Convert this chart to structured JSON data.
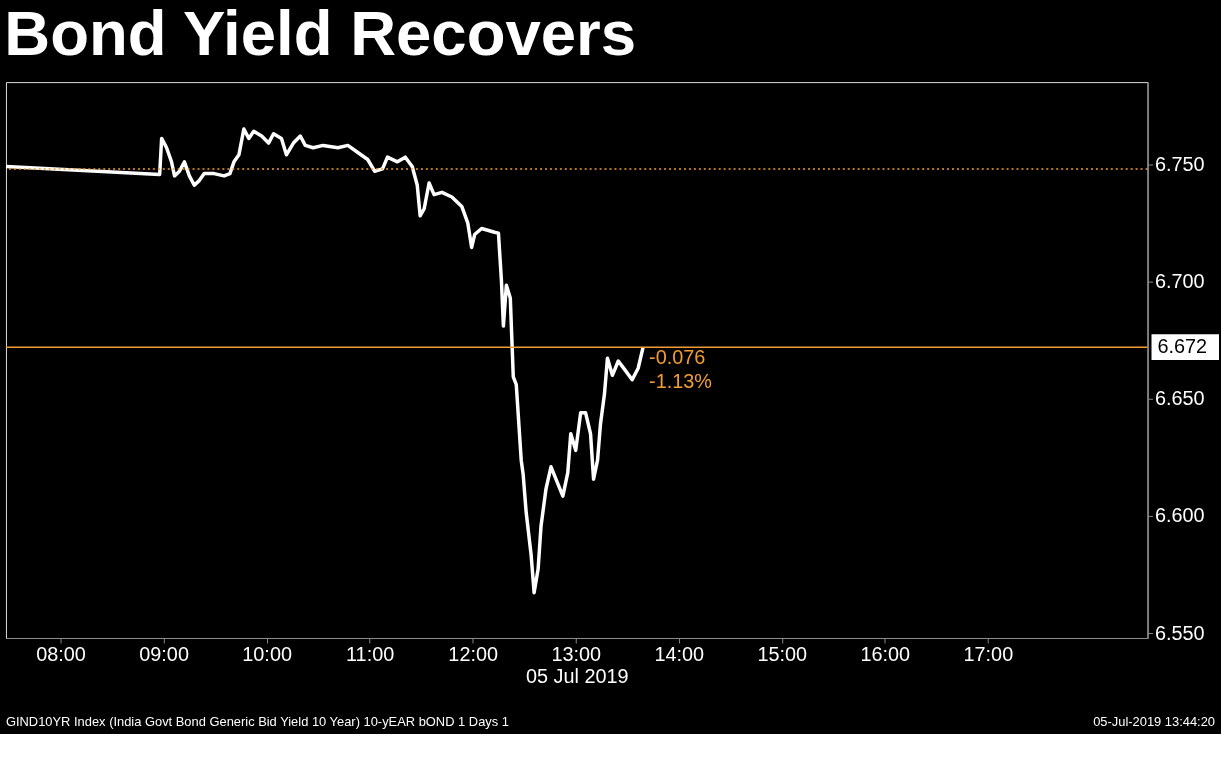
{
  "chart_data": {
    "type": "line",
    "title": "Bond Yield Recovers",
    "xlabel": "05 Jul 2019",
    "grid": false,
    "marker": "none",
    "line_style": "solid",
    "xlim": [
      7.47,
      18.55
    ],
    "ylim": [
      6.548,
      6.785
    ],
    "xticks": [
      {
        "value": 8,
        "label": "08:00"
      },
      {
        "value": 9,
        "label": "09:00"
      },
      {
        "value": 10,
        "label": "10:00"
      },
      {
        "value": 11,
        "label": "11:00"
      },
      {
        "value": 12,
        "label": "12:00"
      },
      {
        "value": 13,
        "label": "13:00"
      },
      {
        "value": 14,
        "label": "14:00"
      },
      {
        "value": 15,
        "label": "15:00"
      },
      {
        "value": 16,
        "label": "16:00"
      },
      {
        "value": 17,
        "label": "17:00"
      }
    ],
    "yticks": [
      {
        "value": 6.55,
        "label": "6.550"
      },
      {
        "value": 6.6,
        "label": "6.600"
      },
      {
        "value": 6.65,
        "label": "6.650"
      },
      {
        "value": 6.7,
        "label": "6.700"
      },
      {
        "value": 6.75,
        "label": "6.750"
      }
    ],
    "series": [
      {
        "color": "#ffffff",
        "x": [
          7.471,
          8.962,
          8.981,
          9.029,
          9.077,
          9.106,
          9.154,
          9.202,
          9.25,
          9.298,
          9.346,
          9.394,
          9.49,
          9.587,
          9.644,
          9.683,
          9.731,
          9.779,
          9.827,
          9.875,
          9.952,
          10.019,
          10.067,
          10.144,
          10.192,
          10.26,
          10.327,
          10.375,
          10.452,
          10.548,
          10.692,
          10.788,
          10.885,
          10.981,
          11.048,
          11.125,
          11.173,
          11.269,
          11.346,
          11.413,
          11.462,
          11.49,
          11.529,
          11.577,
          11.625,
          11.702,
          11.798,
          11.894,
          11.952,
          11.99,
          12.019,
          12.087,
          12.212,
          12.25,
          12.279,
          12.298,
          12.327,
          12.365,
          12.394,
          12.423,
          12.471,
          12.49,
          12.519,
          12.567,
          12.596,
          12.635,
          12.663,
          12.712,
          12.76,
          12.827,
          12.875,
          12.923,
          12.952,
          13.0,
          13.048,
          13.096,
          13.144,
          13.173,
          13.212,
          13.24,
          13.279,
          13.308,
          13.356,
          13.413,
          13.481,
          13.548,
          13.606,
          13.654
        ],
        "values": [
          6.749,
          6.7456,
          6.761,
          6.757,
          6.751,
          6.745,
          6.747,
          6.751,
          6.745,
          6.741,
          6.743,
          6.746,
          6.746,
          6.745,
          6.746,
          6.751,
          6.754,
          6.765,
          6.761,
          6.764,
          6.762,
          6.759,
          6.763,
          6.761,
          6.754,
          6.759,
          6.762,
          6.758,
          6.757,
          6.758,
          6.757,
          6.758,
          6.755,
          6.752,
          6.747,
          6.748,
          6.753,
          6.751,
          6.753,
          6.749,
          6.741,
          6.728,
          6.731,
          6.742,
          6.737,
          6.738,
          6.736,
          6.732,
          6.725,
          6.7145,
          6.72,
          6.7226,
          6.721,
          6.7206,
          6.7004,
          6.681,
          6.6984,
          6.693,
          6.6593,
          6.656,
          6.6238,
          6.6177,
          6.6016,
          6.5835,
          6.5673,
          6.5774,
          6.5956,
          6.6117,
          6.621,
          6.6137,
          6.6085,
          6.6185,
          6.6351,
          6.628,
          6.644,
          6.644,
          6.635,
          6.6157,
          6.6238,
          6.6391,
          6.652,
          6.6673,
          6.66,
          6.6661,
          6.6621,
          6.6581,
          6.663,
          6.672
        ]
      }
    ],
    "ref_lines": [
      {
        "axis": "y",
        "value": 6.748,
        "color": "#f39c33",
        "line_style": "dotted"
      },
      {
        "axis": "y",
        "value": 6.672,
        "label": "6.672",
        "color": "#f39c33",
        "line_style": "solid"
      }
    ],
    "annotations": [
      {
        "text": "-0.076",
        "x": 13.654,
        "y": 6.672
      },
      {
        "text": "-1.13%",
        "x": 13.654,
        "y": 6.672
      },
      "GIND10YR Index (India Govt Bond Generic Bid Yield 10 Year) 10-yEAR bOND 1 Days 1",
      "05-Jul-2019 13:44:20"
    ]
  }
}
